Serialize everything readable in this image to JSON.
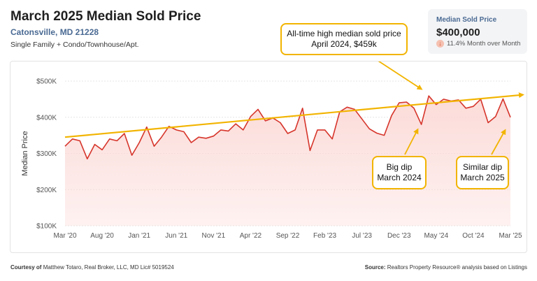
{
  "header": {
    "title": "March 2025 Median Sold Price",
    "location": "Catonsville, MD 21228",
    "segment": "Single Family + Condo/Townhouse/Apt."
  },
  "stat_card": {
    "label": "Median Sold Price",
    "value": "$400,000",
    "change": "11.4% Month over Month",
    "change_icon": "arrow-down-icon"
  },
  "annotations": {
    "high": {
      "line1": "All-time high median sold price",
      "line2": "April 2024, $459k"
    },
    "dip1": {
      "line1": "Big dip",
      "line2": "March 2024"
    },
    "dip2": {
      "line1": "Similar dip",
      "line2": "March 2025"
    }
  },
  "footer": {
    "courtesy_label": "Courtesy of",
    "courtesy_text": "Matthew Totaro, Real Broker, LLC, MD Lic# 5019524",
    "source_label": "Source:",
    "source_text": "Realtors Property Resource® analysis based on Listings"
  },
  "colors": {
    "line": "#d6352b",
    "area": "#fbd9d6",
    "trend": "#f2b400",
    "annotation_border": "#f2b400"
  },
  "chart_data": {
    "type": "area",
    "title": "",
    "xlabel": "",
    "ylabel": "Median Price",
    "ylim": [
      100000,
      500000
    ],
    "yticks": [
      100000,
      200000,
      300000,
      400000,
      500000
    ],
    "ytick_labels": [
      "$100K",
      "$200K",
      "$300K",
      "$400K",
      "$500K"
    ],
    "xtick_labels": [
      "Mar '20",
      "Aug '20",
      "Jan '21",
      "Jun '21",
      "Nov '21",
      "Apr '22",
      "Sep '22",
      "Feb '23",
      "Jul '23",
      "Dec '23",
      "May '24",
      "Oct '24",
      "Mar '25"
    ],
    "x_start": "2020-03",
    "x_end": "2025-03",
    "grid": "horizontal",
    "series": [
      {
        "values": [
          320000,
          340000,
          335000,
          285000,
          325000,
          310000,
          340000,
          335000,
          355000,
          295000,
          330000,
          373000,
          320000,
          345000,
          375000,
          365000,
          360000,
          330000,
          345000,
          342000,
          348000,
          365000,
          362000,
          382000,
          365000,
          402000,
          422000,
          390000,
          398000,
          385000,
          355000,
          365000,
          425000,
          308000,
          365000,
          365000,
          340000,
          415000,
          428000,
          422000,
          395000,
          368000,
          356000,
          350000,
          405000,
          440000,
          442000,
          425000,
          380000,
          459000,
          435000,
          450000,
          445000,
          448000,
          425000,
          430000,
          450000,
          385000,
          402000,
          451000,
          400000
        ]
      }
    ],
    "trend": {
      "start": 345000,
      "end": 462000
    }
  }
}
